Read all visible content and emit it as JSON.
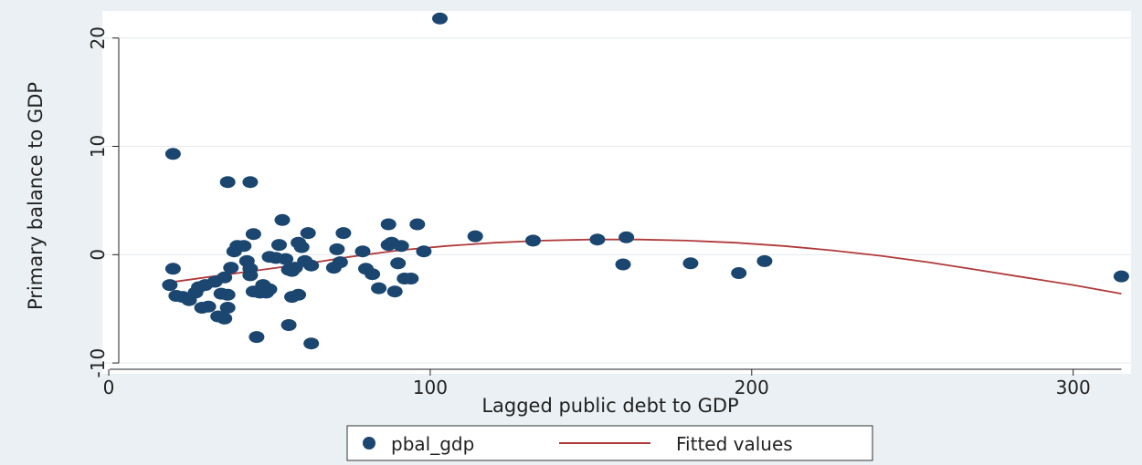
{
  "chart_data": {
    "type": "scatter",
    "xlabel": "Lagged public debt to GDP",
    "ylabel": "Primary balance to GDP",
    "xlim": [
      -2,
      318
    ],
    "ylim": [
      -11,
      22.5
    ],
    "xticks": [
      0,
      100,
      200,
      300
    ],
    "yticks": [
      -10,
      0,
      10,
      20
    ],
    "grid": true,
    "legend": "bottom",
    "colors": {
      "points": "#1a4670",
      "fit": "#b03a3a",
      "plot_bg": "#ffffff",
      "outer_bg": "#eaf0f3",
      "grid": "#e3eaee"
    },
    "series": [
      {
        "name": "pbal_gdp",
        "kind": "scatter",
        "points": [
          [
            103,
            21.8
          ],
          [
            20,
            9.3
          ],
          [
            37,
            6.7
          ],
          [
            44,
            6.7
          ],
          [
            54,
            3.2
          ],
          [
            45,
            1.9
          ],
          [
            62,
            2.0
          ],
          [
            73,
            2.0
          ],
          [
            87,
            2.8
          ],
          [
            96,
            2.8
          ],
          [
            114,
            1.7
          ],
          [
            132,
            1.3
          ],
          [
            152,
            1.4
          ],
          [
            161,
            1.6
          ],
          [
            20,
            -1.3
          ],
          [
            19,
            -2.8
          ],
          [
            21,
            -3.8
          ],
          [
            23,
            -3.9
          ],
          [
            25,
            -4.2
          ],
          [
            27,
            -3.5
          ],
          [
            28,
            -3.0
          ],
          [
            30,
            -2.8
          ],
          [
            29,
            -4.9
          ],
          [
            31,
            -4.8
          ],
          [
            33,
            -2.5
          ],
          [
            34,
            -5.7
          ],
          [
            36,
            -5.9
          ],
          [
            37,
            -4.9
          ],
          [
            35,
            -3.6
          ],
          [
            37,
            -3.7
          ],
          [
            36,
            -2.1
          ],
          [
            38,
            -1.2
          ],
          [
            39,
            0.3
          ],
          [
            40,
            0.8
          ],
          [
            42,
            0.8
          ],
          [
            43,
            -0.6
          ],
          [
            44,
            -1.3
          ],
          [
            44,
            -1.9
          ],
          [
            45,
            -3.4
          ],
          [
            47,
            -3.5
          ],
          [
            48,
            -2.8
          ],
          [
            49,
            -3.5
          ],
          [
            50,
            -3.2
          ],
          [
            46,
            -7.6
          ],
          [
            50,
            -0.2
          ],
          [
            52,
            -0.3
          ],
          [
            53,
            0.9
          ],
          [
            55,
            -0.4
          ],
          [
            56,
            -1.4
          ],
          [
            57,
            -1.5
          ],
          [
            58,
            -1.2
          ],
          [
            59,
            1.1
          ],
          [
            60,
            0.7
          ],
          [
            61,
            -0.6
          ],
          [
            59,
            -3.7
          ],
          [
            57,
            -3.9
          ],
          [
            56,
            -6.5
          ],
          [
            63,
            -1.0
          ],
          [
            63,
            -8.2
          ],
          [
            71,
            0.5
          ],
          [
            70,
            -1.2
          ],
          [
            72,
            -0.7
          ],
          [
            79,
            0.3
          ],
          [
            80,
            -1.3
          ],
          [
            82,
            -1.8
          ],
          [
            84,
            -3.1
          ],
          [
            87,
            0.9
          ],
          [
            88,
            1.1
          ],
          [
            89,
            -3.4
          ],
          [
            90,
            -0.8
          ],
          [
            91,
            0.8
          ],
          [
            92,
            -2.2
          ],
          [
            94,
            -2.2
          ],
          [
            98,
            0.3
          ],
          [
            160,
            -0.9
          ],
          [
            181,
            -0.8
          ],
          [
            196,
            -1.7
          ],
          [
            204,
            -0.6
          ],
          [
            315,
            -2.0
          ]
        ]
      },
      {
        "name": "Fitted values",
        "kind": "line",
        "x": [
          18,
          30,
          45,
          60,
          75,
          90,
          105,
          120,
          135,
          150,
          165,
          180,
          195,
          210,
          225,
          240,
          255,
          270,
          285,
          300,
          315
        ],
        "y": [
          -2.6,
          -2.1,
          -1.5,
          -0.9,
          -0.2,
          0.4,
          0.8,
          1.1,
          1.3,
          1.4,
          1.4,
          1.3,
          1.1,
          0.8,
          0.4,
          -0.1,
          -0.7,
          -1.4,
          -2.1,
          -2.8,
          -3.6
        ]
      }
    ]
  }
}
